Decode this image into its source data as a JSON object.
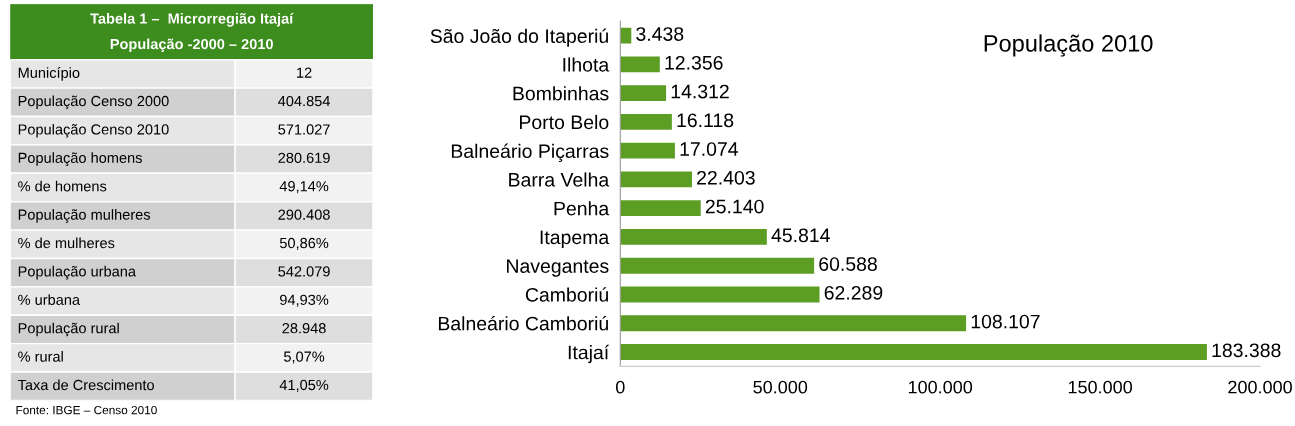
{
  "chart_data": [
    {
      "type": "other",
      "title": "Tabela 1 –  Microrregião Itajaí",
      "subtitle": "População -2000 – 2010",
      "categories": [
        "Município",
        "População Censo 2000",
        "População Censo 2010",
        "População homens",
        "% de homens",
        "População mulheres",
        "% de mulheres",
        "População urbana",
        "% urbana",
        "População rural",
        "% rural",
        "Taxa de Crescimento"
      ],
      "value_labels": [
        "12",
        "404.854",
        "571.027",
        "280.619",
        "49,14%",
        "290.408",
        "50,86%",
        "542.079",
        "94,93%",
        "28.948",
        "5,07%",
        "41,05%"
      ],
      "color": "#3c8c1e",
      "annotations": [
        "Fonte: IBGE – Censo 2010"
      ]
    },
    {
      "type": "bar",
      "orientation": "horizontal",
      "title": "População 2010",
      "categories": [
        "São João do Itaperiú",
        "Ilhota",
        "Bombinhas",
        "Porto Belo",
        "Balneário Piçarras",
        "Barra Velha",
        "Penha",
        "Itapema",
        "Navegantes",
        "Camboriú",
        "Balneário Camboriú",
        "Itajaí"
      ],
      "values": [
        3438,
        12356,
        14312,
        16118,
        17074,
        22403,
        25140,
        45814,
        60588,
        62289,
        108107,
        183388
      ],
      "value_labels": [
        "3.438",
        "12.356",
        "14.312",
        "16.118",
        "17.074",
        "22.403",
        "25.140",
        "45.814",
        "60.588",
        "62.289",
        "108.107",
        "183.388"
      ],
      "color": "#5c9e24",
      "xlim": [
        0,
        200000
      ],
      "xticks": [
        0,
        {
          "value": 50000,
          "label": "50.000"
        },
        {
          "value": 100000,
          "label": "100.000"
        },
        {
          "value": 150000,
          "label": "150.000"
        },
        {
          "value": 200000,
          "label": "200.000"
        }
      ],
      "grid": false
    }
  ]
}
